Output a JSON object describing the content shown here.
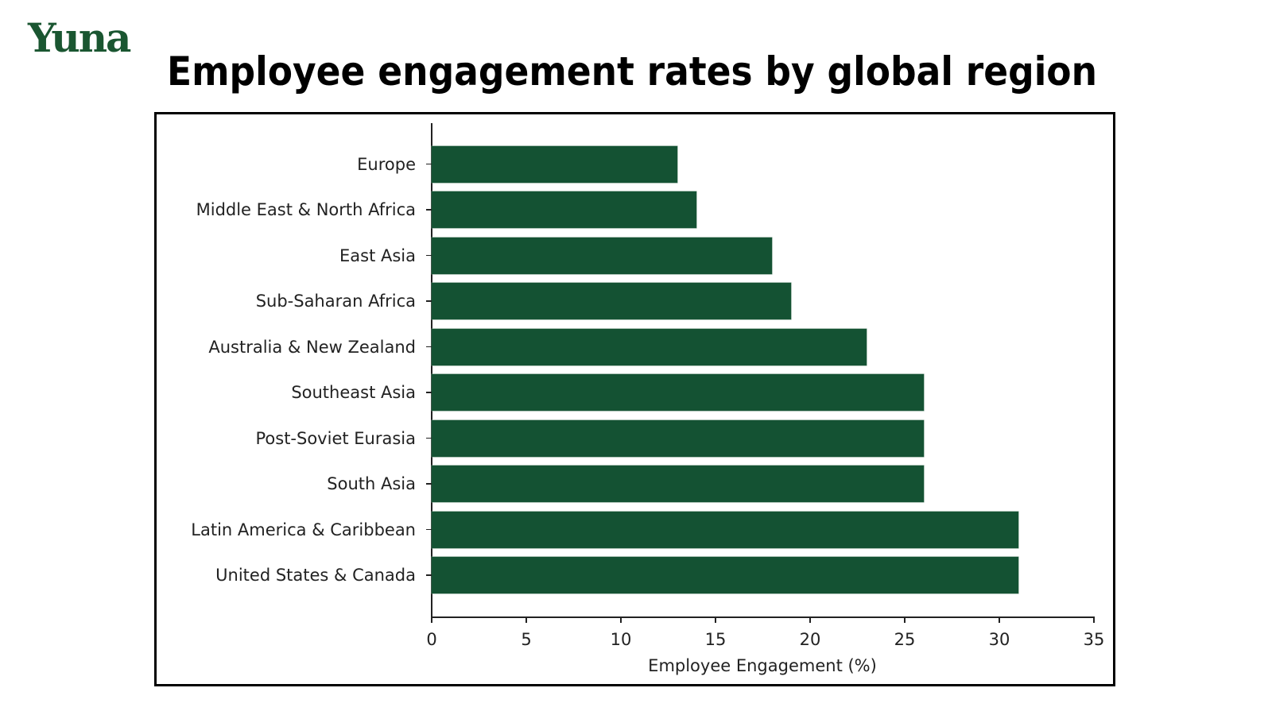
{
  "brand": {
    "logo_text": "Yuna",
    "color": "#1a5631"
  },
  "header": {
    "title": "Employee engagement rates by global region"
  },
  "colors": {
    "bar": "#145233",
    "text": "#222222",
    "frame": "#000000"
  },
  "chart_data": {
    "type": "bar",
    "orientation": "horizontal",
    "title": "Employee engagement rates by global region",
    "xlabel": "Employee Engagement (%)",
    "ylabel": "",
    "categories": [
      "Europe",
      "Middle East & North Africa",
      "East Asia",
      "Sub-Saharan Africa",
      "Australia & New Zealand",
      "Southeast Asia",
      "Post-Soviet Eurasia",
      "South Asia",
      "Latin America & Caribbean",
      "United States & Canada"
    ],
    "values": [
      13,
      14,
      18,
      19,
      23,
      26,
      26,
      26,
      31,
      31
    ],
    "xlim": [
      0,
      35
    ],
    "xticks": [
      "0",
      "5",
      "10",
      "15",
      "20",
      "25",
      "30",
      "35"
    ],
    "grid": false,
    "legend": null,
    "bar_color": "#145233"
  }
}
